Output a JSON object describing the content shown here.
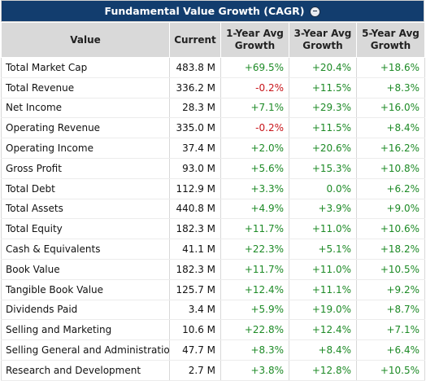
{
  "title": "Fundamental Value Growth (CAGR)",
  "colors": {
    "header_bg": "#123d6e",
    "positive": "#1d8a26",
    "negative": "#c8151a",
    "column_header_bg": "#d9d9d9"
  },
  "columns": {
    "value": "Value",
    "current": "Current",
    "y1_line1": "1-Year Avg",
    "y1_line2": "Growth",
    "y3_line1": "3-Year Avg",
    "y3_line2": "Growth",
    "y5_line1": "5-Year Avg",
    "y5_line2": "Growth"
  },
  "rows": [
    {
      "label": "Total Market Cap",
      "current": "483.8 M",
      "y1": "+69.5%",
      "y3": "+20.4%",
      "y5": "+18.6%"
    },
    {
      "label": "Total Revenue",
      "current": "336.2 M",
      "y1": "-0.2%",
      "y3": "+11.5%",
      "y5": "+8.3%"
    },
    {
      "label": "Net Income",
      "current": "28.3 M",
      "y1": "+7.1%",
      "y3": "+29.3%",
      "y5": "+16.0%"
    },
    {
      "label": "Operating Revenue",
      "current": "335.0 M",
      "y1": "-0.2%",
      "y3": "+11.5%",
      "y5": "+8.4%"
    },
    {
      "label": "Operating Income",
      "current": "37.4 M",
      "y1": "+2.0%",
      "y3": "+20.6%",
      "y5": "+16.2%"
    },
    {
      "label": "Gross Profit",
      "current": "93.0 M",
      "y1": "+5.6%",
      "y3": "+15.3%",
      "y5": "+10.8%"
    },
    {
      "label": "Total Debt",
      "current": "112.9 M",
      "y1": "+3.3%",
      "y3": "0.0%",
      "y5": "+6.2%"
    },
    {
      "label": "Total Assets",
      "current": "440.8 M",
      "y1": "+4.9%",
      "y3": "+3.9%",
      "y5": "+9.0%"
    },
    {
      "label": "Total Equity",
      "current": "182.3 M",
      "y1": "+11.7%",
      "y3": "+11.0%",
      "y5": "+10.6%"
    },
    {
      "label": "Cash & Equivalents",
      "current": "41.1 M",
      "y1": "+22.3%",
      "y3": "+5.1%",
      "y5": "+18.2%"
    },
    {
      "label": "Book Value",
      "current": "182.3 M",
      "y1": "+11.7%",
      "y3": "+11.0%",
      "y5": "+10.5%"
    },
    {
      "label": "Tangible Book Value",
      "current": "125.7 M",
      "y1": "+12.4%",
      "y3": "+11.1%",
      "y5": "+9.2%"
    },
    {
      "label": "Dividends Paid",
      "current": "3.4 M",
      "y1": "+5.9%",
      "y3": "+19.0%",
      "y5": "+8.7%"
    },
    {
      "label": "Selling and Marketing",
      "current": "10.6 M",
      "y1": "+22.8%",
      "y3": "+12.4%",
      "y5": "+7.1%"
    },
    {
      "label": "Selling General and Administration",
      "current": "47.7 M",
      "y1": "+8.3%",
      "y3": "+8.4%",
      "y5": "+6.4%"
    },
    {
      "label": "Research and Development",
      "current": "2.7 M",
      "y1": "+3.8%",
      "y3": "+12.8%",
      "y5": "+10.5%"
    }
  ]
}
